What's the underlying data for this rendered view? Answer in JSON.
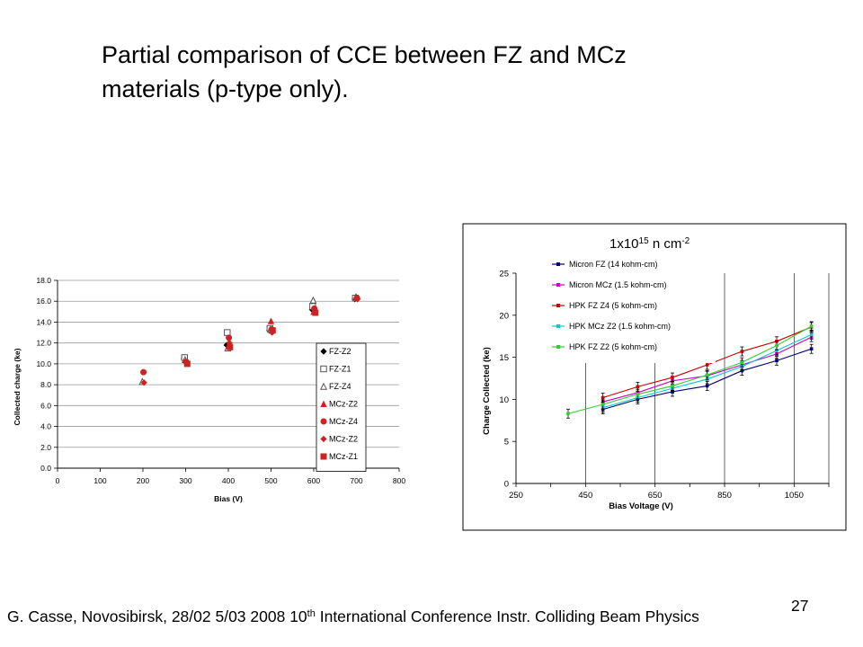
{
  "slide": {
    "title_line1": "Partial comparison of CCE between FZ and MCz",
    "title_line2": "materials (p-type only).",
    "footer_prefix": "G. Casse, Novosibirsk, 28/02 5/03 2008      10",
    "footer_sup": "th",
    "footer_suffix": " International Conference Instr. Colliding Beam Physics",
    "page_number": "27"
  },
  "chart_data": [
    {
      "type": "scatter",
      "xlabel": "Bias (V)",
      "ylabel": "Collected charge (ke)",
      "xlim": [
        0,
        800
      ],
      "ylim": [
        0,
        18
      ],
      "xticks": [
        "0",
        "100",
        "200",
        "300",
        "400",
        "500",
        "600",
        "700",
        "800"
      ],
      "yticks": [
        "0.0",
        "2.0",
        "4.0",
        "6.0",
        "8.0",
        "10.0",
        "12.0",
        "14.0",
        "16.0",
        "18.0"
      ],
      "grid": "horizontal",
      "legend_position": "right",
      "series": [
        {
          "name": "FZ-Z2",
          "marker": "diamond",
          "color": "#000000",
          "x": [
            300,
            400,
            500,
            600,
            700
          ],
          "y": [
            10.5,
            11.8,
            13.2,
            15.2,
            16.2
          ]
        },
        {
          "name": "FZ-Z1",
          "marker": "square-open",
          "color": "#555555",
          "x": [
            300,
            400,
            500,
            600,
            700
          ],
          "y": [
            10.6,
            13.0,
            13.4,
            15.5,
            16.3
          ]
        },
        {
          "name": "FZ-Z4",
          "marker": "triangle-open",
          "color": "#555555",
          "x": [
            200,
            300,
            400,
            500,
            600,
            700
          ],
          "y": [
            8.3,
            10.4,
            11.5,
            13.3,
            16.1,
            16.4
          ]
        },
        {
          "name": "MCz-Z2",
          "marker": "triangle",
          "color": "#cc2222",
          "x": [
            400,
            500,
            600,
            700
          ],
          "y": [
            11.7,
            14.1,
            15.0,
            16.4
          ]
        },
        {
          "name": "MCz-Z4",
          "marker": "circle",
          "color": "#cc2222",
          "x": [
            200,
            300,
            400,
            500,
            600,
            700
          ],
          "y": [
            9.2,
            10.2,
            12.5,
            13.3,
            15.3,
            16.3
          ]
        },
        {
          "name": "MCz-Z2",
          "marker": "diamond",
          "color": "#cc2222",
          "x": [
            200,
            300,
            400,
            500,
            600,
            700
          ],
          "y": [
            8.2,
            10.1,
            12.0,
            13.0,
            15.1,
            16.2
          ]
        },
        {
          "name": "MCz-Z1",
          "marker": "square",
          "color": "#cc2222",
          "x": [
            300,
            400,
            500,
            600
          ],
          "y": [
            10.0,
            11.6,
            13.2,
            14.9
          ]
        }
      ]
    },
    {
      "type": "line",
      "title": "1x10",
      "title_sup": "15",
      "title_suffix": " n cm",
      "title_suffix_sup": "-2",
      "xlabel": "Bias Voltage (V)",
      "ylabel": "Charge Collected (ke)",
      "xlim": [
        250,
        1150
      ],
      "ylim": [
        0,
        25
      ],
      "xticks": [
        "250",
        "450",
        "650",
        "850",
        "1050"
      ],
      "yticks": [
        "0",
        "5",
        "10",
        "15",
        "20",
        "25"
      ],
      "grid": "vertical",
      "legend_position": "top-left",
      "series": [
        {
          "name": "Micron FZ (14 kohm-cm)",
          "color": "#000080",
          "x": [
            500,
            600,
            700,
            800,
            900,
            1000,
            1100
          ],
          "y": [
            8.8,
            10.0,
            10.9,
            11.6,
            13.4,
            14.6,
            16.0
          ]
        },
        {
          "name": "Micron MCz (1.5 kohm-cm)",
          "color": "#cc00cc",
          "x": [
            500,
            600,
            700,
            800,
            900,
            1000,
            1100
          ],
          "y": [
            9.7,
            10.8,
            12.2,
            12.8,
            14.1,
            15.4,
            17.4
          ]
        },
        {
          "name": "HPK FZ Z4 (5 kohm-cm)",
          "color": "#cc0000",
          "x": [
            500,
            600,
            700,
            800,
            900,
            1000,
            1100
          ],
          "y": [
            10.2,
            11.5,
            12.6,
            14.1,
            15.7,
            16.9,
            18.6
          ]
        },
        {
          "name": "HPK MCz Z2 (1.5 kohm-cm)",
          "color": "#00cccc",
          "x": [
            500,
            600,
            700,
            800,
            900,
            1000,
            1100
          ],
          "y": [
            9.0,
            10.2,
            11.3,
            12.4,
            13.9,
            15.8,
            17.7
          ]
        },
        {
          "name": "HPK FZ Z2 (5 kohm-cm)",
          "color": "#33cc33",
          "x": [
            400,
            500,
            600,
            700,
            800,
            900,
            1000,
            1100
          ],
          "y": [
            8.3,
            9.4,
            10.6,
            11.6,
            12.9,
            14.4,
            16.4,
            18.7
          ]
        }
      ]
    }
  ]
}
